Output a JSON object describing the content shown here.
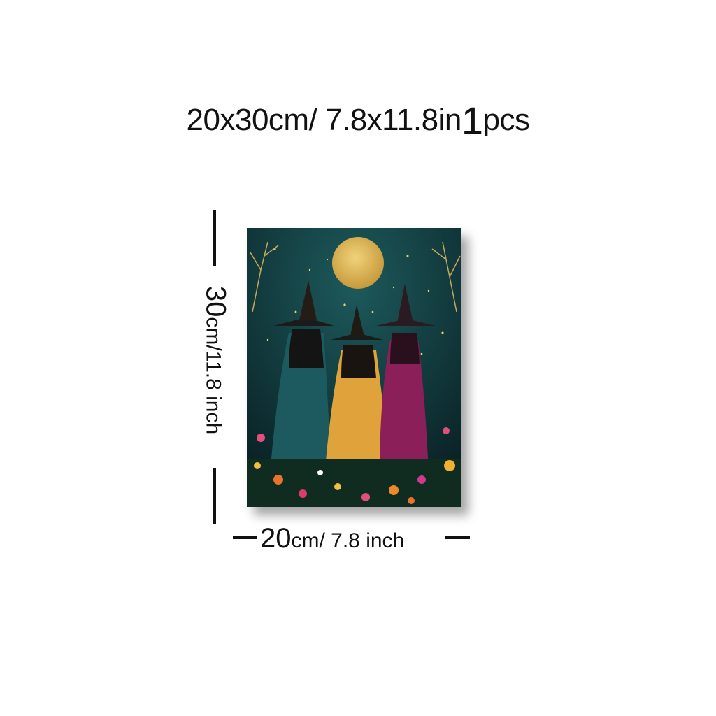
{
  "title": {
    "size": "20x30cm/ 7.8x11.8in",
    "quantity": "1",
    "unit": "pcs"
  },
  "height_dim": {
    "value": "30",
    "unit": "cm/11.8 inch"
  },
  "width_dim": {
    "value": "20",
    "unit": "cm/ 7.8 inch"
  },
  "artwork": {
    "subject": "three witches in cloaks under a full moon among wildflowers",
    "colors": {
      "sky": "#0f3a3f",
      "moon": "#d9b556",
      "cloak_teal": "#1d5a5f",
      "cloak_orange": "#e0a23a",
      "cloak_magenta": "#8a1f5a"
    }
  }
}
